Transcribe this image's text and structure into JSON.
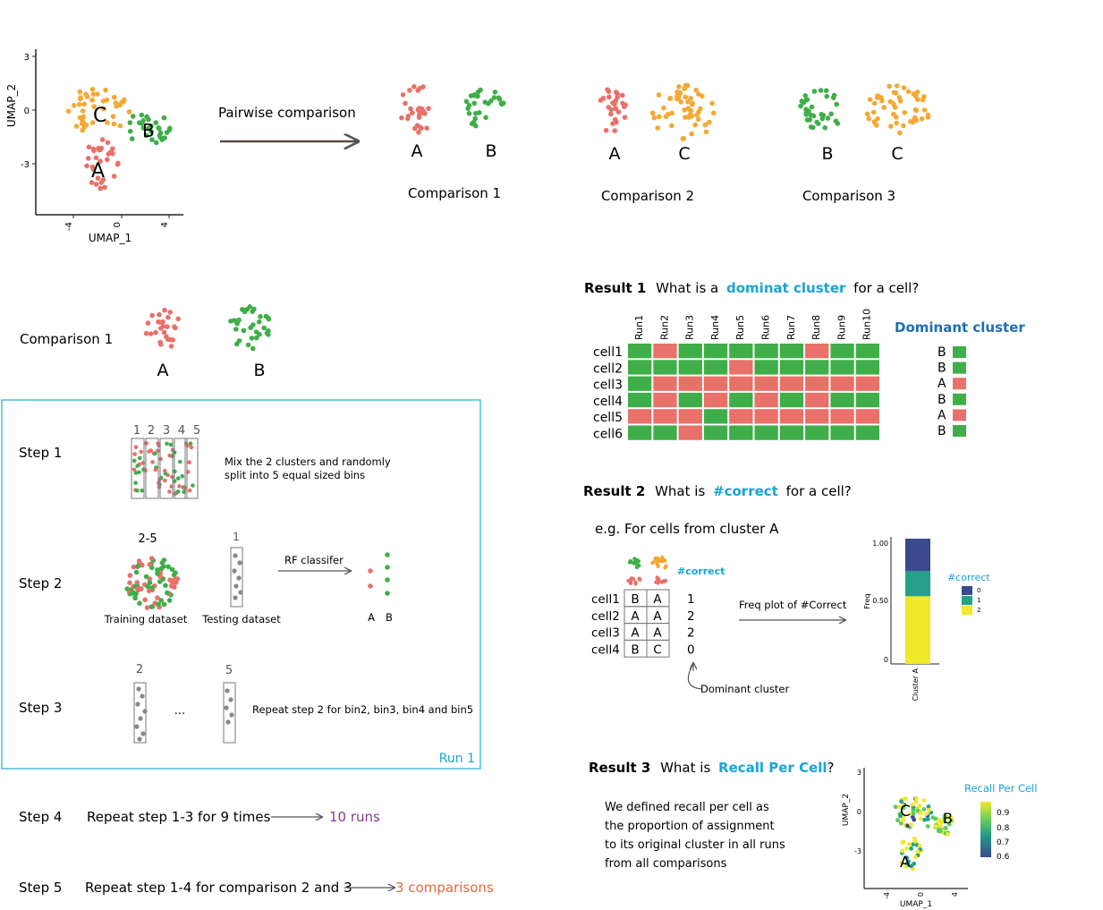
{
  "colors": {
    "A": "#e8716a",
    "B": "#3fae49",
    "C": "#f5a832",
    "grey": "#888888",
    "cyan": "#1aa3d6",
    "box": "#4bbde0",
    "recall_low": "#3b4a8c",
    "recall_mid": "#24a08b",
    "recall_high": "#f0e82a"
  },
  "top": {
    "umap": {
      "xlabel": "UMAP_1",
      "ylabel": "UMAP_2",
      "yticks": [
        "3",
        "0",
        "-3"
      ],
      "xticks": [
        "-4",
        "0",
        "4"
      ],
      "cluster_labels": [
        "C",
        "B",
        "A"
      ]
    },
    "arrow_label": "Pairwise comparison",
    "comparisons": [
      {
        "left": "A",
        "right": "B",
        "caption": "Comparison 1"
      },
      {
        "left": "A",
        "right": "C",
        "caption": "Comparison 2"
      },
      {
        "left": "B",
        "right": "C",
        "caption": "Comparison 3"
      }
    ]
  },
  "comp1": {
    "caption": "Comparison 1",
    "left": "A",
    "right": "B"
  },
  "steps": {
    "step1": {
      "label": "Step 1",
      "bins": [
        "1",
        "2",
        "3",
        "4",
        "5"
      ],
      "text1": "Mix the 2 clusters and randomly",
      "text2": "split into 5 equal sized bins"
    },
    "step2": {
      "label": "Step 2",
      "train_bins": "2-5",
      "test_bin": "1",
      "classifier": "RF classifer",
      "train_label": "Training dataset",
      "test_label": "Testing dataset",
      "out_a": "A",
      "out_b": "B"
    },
    "step3": {
      "label": "Step 3",
      "bin_first": "2",
      "bin_last": "5",
      "ellipsis": "...",
      "text": "Repeat step 2 for bin2, bin3, bin4 and bin5"
    },
    "run_label": "Run 1",
    "step4": {
      "label": "Step 4",
      "text": "Repeat step 1-3 for 9 times",
      "result": "10 runs"
    },
    "step5": {
      "label": "Step 5",
      "text": "Repeat step 1-4 for comparison 2 and 3",
      "result": "3 comparisons"
    }
  },
  "result1": {
    "bold": "Result 1",
    "q_pre": "What is a",
    "q_highlight": "dominat cluster",
    "q_post": "for a cell?",
    "runs": [
      "Run1",
      "Run2",
      "Run3",
      "Run4",
      "Run5",
      "Run6",
      "Run7",
      "Run8",
      "Run9",
      "Run10"
    ],
    "cells": [
      "cell1",
      "cell2",
      "cell3",
      "cell4",
      "cell5",
      "cell6"
    ],
    "grid": [
      [
        "B",
        "A",
        "B",
        "B",
        "B",
        "B",
        "B",
        "A",
        "B",
        "B"
      ],
      [
        "B",
        "B",
        "B",
        "B",
        "A",
        "B",
        "B",
        "B",
        "B",
        "B"
      ],
      [
        "B",
        "A",
        "A",
        "A",
        "A",
        "A",
        "A",
        "A",
        "A",
        "A"
      ],
      [
        "B",
        "A",
        "B",
        "A",
        "B",
        "A",
        "B",
        "A",
        "B",
        "B"
      ],
      [
        "A",
        "A",
        "A",
        "B",
        "A",
        "A",
        "A",
        "A",
        "A",
        "A"
      ],
      [
        "B",
        "B",
        "A",
        "B",
        "B",
        "B",
        "B",
        "B",
        "B",
        "B"
      ]
    ],
    "dominant_title": "Dominant cluster",
    "dominant": [
      "B",
      "B",
      "A",
      "B",
      "A",
      "B"
    ]
  },
  "result2": {
    "bold": "Result 2",
    "q_pre": "What is",
    "q_highlight": "#correct",
    "q_post": "for a cell?",
    "example": "e.g. For cells from cluster A",
    "correct_label": "#correct",
    "cells": [
      "cell1",
      "cell2",
      "cell3",
      "cell4"
    ],
    "table": [
      [
        "B",
        "A"
      ],
      [
        "A",
        "A"
      ],
      [
        "A",
        "A"
      ],
      [
        "B",
        "C"
      ]
    ],
    "counts": [
      "1",
      "2",
      "2",
      "0"
    ],
    "freq_label": "Freq plot of #Correct",
    "dominant_label": "Dominant cluster",
    "chart": {
      "ylabel": "Freq",
      "yticks": [
        "1.00",
        "0.50",
        "0"
      ],
      "xlabel": "Cluster A",
      "legend_title": "#correct",
      "legend": [
        "0",
        "1",
        "2"
      ]
    }
  },
  "result3": {
    "bold": "Result 3",
    "q_pre": "What is",
    "q_highlight": "Recall Per Cell",
    "q_post": "?",
    "desc": [
      "We defined recall per cell as",
      "the proportion of assignment",
      "to its original cluster in all runs",
      "from all comparisons"
    ],
    "umap": {
      "xlabel": "UMAP_1",
      "ylabel": "UMAP_2",
      "yticks": [
        "3",
        "0",
        "-3"
      ],
      "xticks": [
        "-4",
        "0",
        "4"
      ],
      "cluster_labels": [
        "C",
        "B",
        "A"
      ]
    },
    "legend_title": "Recall Per Cell",
    "legend": [
      "0.9",
      "0.8",
      "0.7",
      "0.6"
    ]
  },
  "chart_data": {
    "type": "bar",
    "categories": [
      "Cluster A"
    ],
    "series": [
      {
        "name": "0",
        "values": [
          0.26
        ]
      },
      {
        "name": "1",
        "values": [
          0.2
        ]
      },
      {
        "name": "2",
        "values": [
          0.54
        ]
      }
    ],
    "xlabel": "",
    "ylabel": "Freq",
    "ylim": [
      0,
      1
    ],
    "stacked": true,
    "legend_title": "#correct",
    "legend_position": "right"
  }
}
